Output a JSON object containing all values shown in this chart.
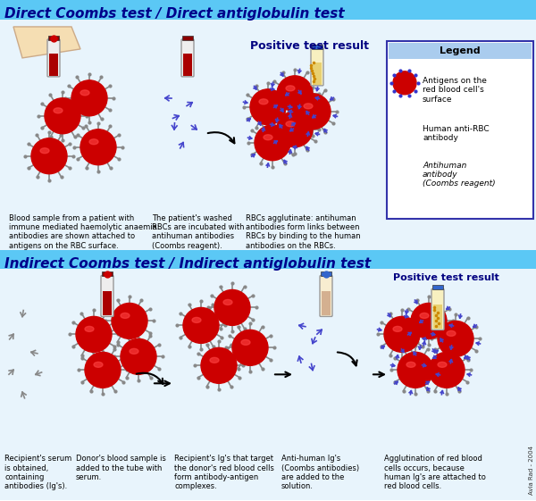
{
  "title_direct": "Direct Coombs test / Direct antiglobulin test",
  "title_indirect": "Indirect Coombs test / Indirect antiglobulin test",
  "title_color": "#00008B",
  "bg_direct": "#87CEEB",
  "bg_indirect": "#87CEEB",
  "bg_main": "#DDEEFF",
  "positive_text": "Positive test result",
  "positive_color": "#000080",
  "legend_title": "Legend",
  "legend_items": [
    "Antigens on the\nred blood cell's\nsurface",
    "Human anti-RBC\nantibody",
    "Antihuman\nantibody\n(Coombs reagent)"
  ],
  "rbc_color": "#CC0000",
  "rbc_edge": "#EE4444",
  "spike_color": "#888888",
  "antibody_gray": "#999999",
  "antibody_blue": "#4444CC",
  "dot_color": "#3333CC",
  "tube_body": "#F5DEB3",
  "tube_blood": "#AA0000",
  "tube_positive": "#F0D080",
  "header_bg_direct": "#5BC8F5",
  "header_bg_indirect": "#5BC8F5",
  "section_bg": "#E8F4FC"
}
